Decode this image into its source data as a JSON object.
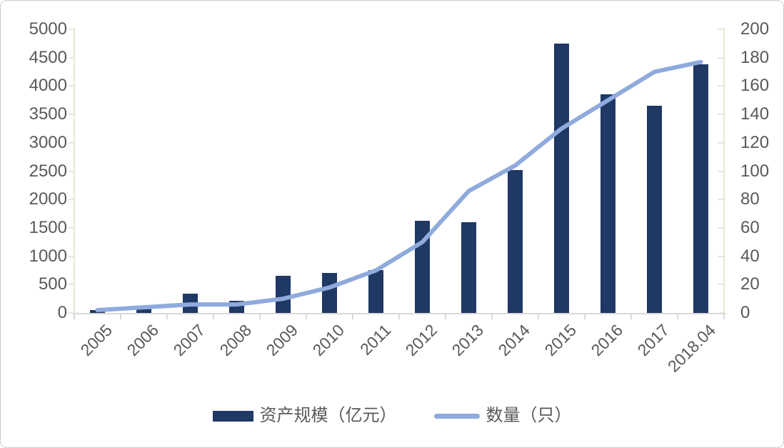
{
  "chart_data": {
    "type": "bar+line combo",
    "categories": [
      "2005",
      "2006",
      "2007",
      "2008",
      "2009",
      "2010",
      "2011",
      "2012",
      "2013",
      "2014",
      "2015",
      "2016",
      "2017",
      "2018.04"
    ],
    "series": [
      {
        "name": "资产规模（亿元）",
        "type": "bar",
        "axis": "left",
        "values": [
          55,
          75,
          340,
          215,
          650,
          710,
          760,
          1620,
          1600,
          2520,
          4750,
          3860,
          3650,
          4380
        ]
      },
      {
        "name": "数量（只）",
        "type": "line",
        "axis": "right",
        "values": [
          2,
          4,
          6,
          6,
          10,
          18,
          30,
          50,
          86,
          104,
          130,
          150,
          170,
          177
        ]
      }
    ],
    "left_axis": {
      "min": 0,
      "max": 5000,
      "step": 500
    },
    "right_axis": {
      "min": 0,
      "max": 200,
      "step": 20
    },
    "legend_position": "bottom",
    "grid": false,
    "x_label_rotation_deg": -45
  },
  "legend": {
    "bar_label": "资产规模（亿元）",
    "line_label": "数量（只）"
  },
  "colors": {
    "bar": "#1F3864",
    "line": "#8FAADC",
    "value_axis_stroke": "#EAE6D5",
    "category_axis_stroke": "#D9D9D9",
    "tick_label": "#595959",
    "frame_border": "#C9C9C9",
    "background": "#FFFFFF"
  }
}
